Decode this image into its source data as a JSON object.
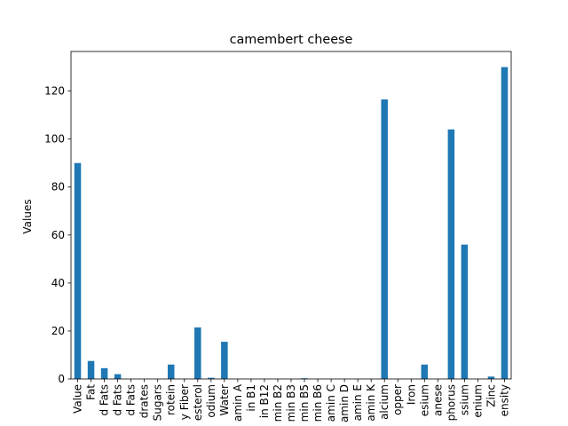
{
  "chart_data": {
    "type": "bar",
    "title": "camembert cheese",
    "xlabel": "",
    "ylabel": "Values",
    "ylim": [
      0,
      136.5
    ],
    "yticks": [
      0,
      20,
      40,
      60,
      80,
      100,
      120
    ],
    "bar_color": "#1f77b4",
    "grid": false,
    "categories": [
      "Value",
      "Fat",
      "d Fats",
      "d Fats",
      "d Fats",
      "drates",
      "Sugars",
      "rotein",
      "y Fiber",
      "esterol",
      "odium",
      "Water",
      "amin A",
      "in B1",
      "in B12",
      "min B2",
      "min B3",
      "min B5",
      "min B6",
      "amin C",
      "amin D",
      "amin E",
      "amin K",
      "alcium",
      "opper",
      "Iron",
      "esium",
      "anese",
      "phorus",
      "ssium",
      "enium",
      "Zinc",
      "ensity"
    ],
    "values": [
      90,
      7.5,
      4.5,
      2,
      0,
      0,
      0,
      6,
      0,
      21.5,
      0.5,
      15.5,
      0,
      0,
      0,
      0,
      0,
      0.3,
      0,
      0,
      0,
      0,
      0,
      116.5,
      0,
      0,
      6,
      0,
      104,
      56,
      0,
      1,
      130
    ]
  }
}
